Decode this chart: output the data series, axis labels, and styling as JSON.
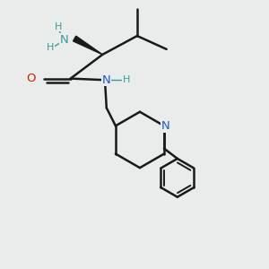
{
  "background_color": "#eaecec",
  "bond_color": "#1a1a1a",
  "bond_width": 1.8,
  "fig_width": 3.0,
  "fig_height": 3.0,
  "dpi": 100,
  "xlim": [
    0,
    10
  ],
  "ylim": [
    0,
    10
  ],
  "nh2_color": "#3a9a9a",
  "N_amide_color": "#2255cc",
  "N_pip_color": "#2255cc",
  "O_color": "#cc2200"
}
